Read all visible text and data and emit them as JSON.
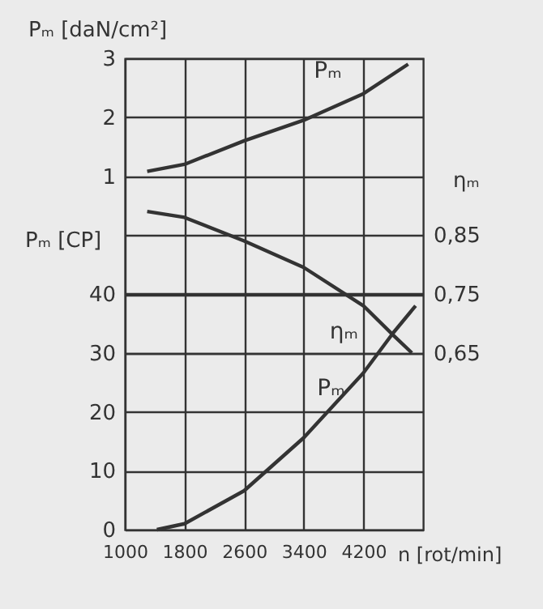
{
  "chart_data": {
    "type": "line",
    "xlabel": "n [rot/min]",
    "ylabel": "Pₘ [CP]",
    "y2label": "ηₘ",
    "y3label": "Pₘ [daN/cm²]",
    "xlim": [
      1000,
      5000
    ],
    "xticks": [
      1000,
      1800,
      2600,
      3400,
      4200
    ],
    "ylim": [
      0,
      80
    ],
    "yticks": [
      0,
      10,
      20,
      30,
      40
    ],
    "y2lim": [
      0.35,
      1.15
    ],
    "y2ticks": [
      {
        "value": 0.65,
        "label": "0,65"
      },
      {
        "value": 0.75,
        "label": "0,75"
      },
      {
        "value": 0.85,
        "label": "0,85"
      }
    ],
    "y3lim": [
      -5,
      3
    ],
    "y3ticks": [
      1,
      2,
      3
    ],
    "grid": true,
    "legend": false,
    "line_style": "solid",
    "marker": "none",
    "series": [
      {
        "name": "Pₘ",
        "color": "#333333",
        "axis": "y3",
        "x": [
          1300,
          1800,
          2600,
          3400,
          4200,
          4800
        ],
        "values": [
          1.08,
          1.2,
          1.6,
          1.95,
          2.4,
          2.9
        ]
      },
      {
        "name": "ηₘ",
        "color": "#333333",
        "axis": "y2",
        "x": [
          1300,
          1800,
          2600,
          3400,
          4200,
          4600,
          4850
        ],
        "values": [
          0.89,
          0.88,
          0.84,
          0.795,
          0.73,
          0.68,
          0.65
        ]
      },
      {
        "name": "Pₘ",
        "color": "#333333",
        "axis": "y",
        "x": [
          1430,
          1800,
          2600,
          3400,
          4200,
          4600,
          4900
        ],
        "values": [
          0,
          1,
          6.6,
          15.6,
          26.6,
          33.4,
          38
        ]
      }
    ]
  }
}
